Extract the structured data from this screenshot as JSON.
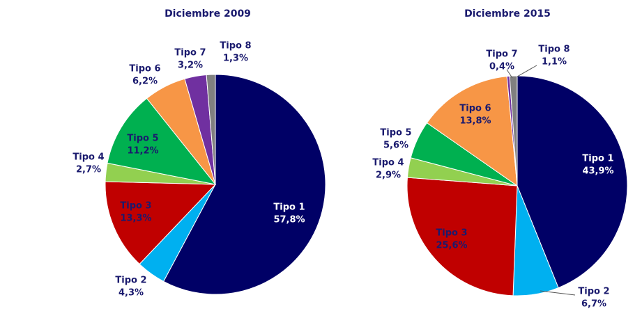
{
  "chart_data": [
    {
      "type": "pie",
      "title": "Diciembre 2009",
      "categories": [
        "Tipo 1",
        "Tipo 2",
        "Tipo 3",
        "Tipo 4",
        "Tipo 5",
        "Tipo 6",
        "Tipo 7",
        "Tipo 8"
      ],
      "values": [
        57.8,
        4.3,
        13.3,
        2.7,
        11.2,
        6.2,
        3.2,
        1.3
      ],
      "value_labels": [
        "57,8%",
        "4,3%",
        "13,3%",
        "2,7%",
        "11,2%",
        "6,2%",
        "3,2%",
        "1,3%"
      ],
      "colors": [
        "#000066",
        "#00b0f0",
        "#c00000",
        "#92d050",
        "#00b050",
        "#f79646",
        "#7030a0",
        "#808080"
      ]
    },
    {
      "type": "pie",
      "title": "Diciembre 2015",
      "categories": [
        "Tipo 1",
        "Tipo 2",
        "Tipo 3",
        "Tipo 4",
        "Tipo 5",
        "Tipo 6",
        "Tipo 7",
        "Tipo 8"
      ],
      "values": [
        43.9,
        6.7,
        25.6,
        2.9,
        5.6,
        13.8,
        0.4,
        1.1
      ],
      "value_labels": [
        "43,9%",
        "6,7%",
        "25,6%",
        "2,9%",
        "5,6%",
        "13,8%",
        "0,4%",
        "1,1%"
      ],
      "colors": [
        "#000066",
        "#00b0f0",
        "#c00000",
        "#92d050",
        "#00b050",
        "#f79646",
        "#7030a0",
        "#808080"
      ]
    }
  ]
}
